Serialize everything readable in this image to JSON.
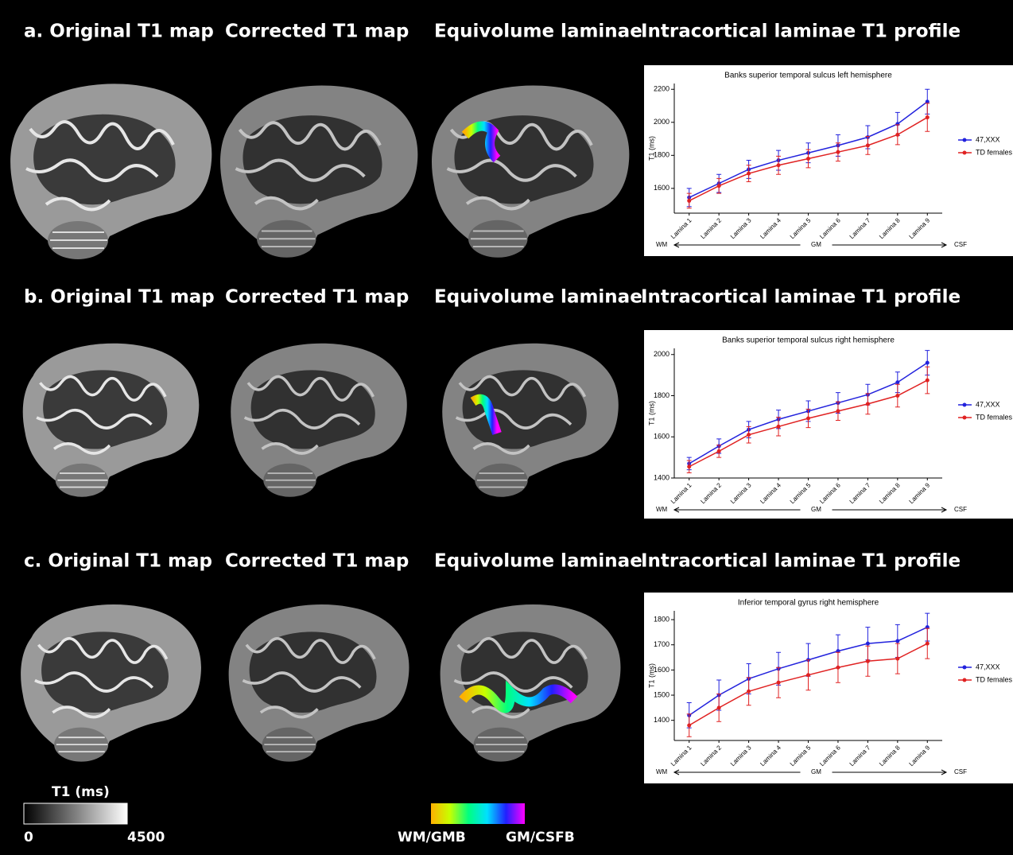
{
  "panels": [
    {
      "headers": [
        "a. Original T1 map",
        "Corrected T1 map",
        "Equivolume laminae",
        "Intracortical laminae T1 profile"
      ]
    },
    {
      "headers": [
        "b. Original T1 map",
        "Corrected T1 map",
        "Equivolume laminae",
        "Intracortical laminae T1 profile"
      ]
    },
    {
      "headers": [
        "c. Original T1 map",
        "Corrected T1 map",
        "Equivolume laminae",
        "Intracortical laminae T1 profile"
      ]
    }
  ],
  "colorbars": [
    {
      "title": "T1 (ms)",
      "min_label": "0",
      "max_label": "4500"
    },
    {
      "min_label": "WM/GMB",
      "max_label": "GM/CSFB"
    }
  ],
  "chart_data": [
    {
      "type": "line",
      "title": "Banks superior temporal sulcus left hemisphere",
      "y_label": "T1 (ms)",
      "categories": [
        "Lamina 1",
        "Lamina 2",
        "Lamina 3",
        "Lamina 4",
        "Lamina 5",
        "Lamina 6",
        "Lamina 7",
        "Lamina 8",
        "Lamina 9"
      ],
      "series": [
        {
          "name": "47,XXX",
          "color": "#2222dd",
          "values": [
            1545,
            1630,
            1715,
            1770,
            1815,
            1860,
            1910,
            1990,
            2125
          ],
          "errors": [
            55,
            55,
            55,
            60,
            60,
            65,
            70,
            70,
            75
          ]
        },
        {
          "name": "TD females",
          "color": "#e02222",
          "values": [
            1525,
            1615,
            1690,
            1740,
            1780,
            1820,
            1860,
            1925,
            2030
          ],
          "errors": [
            45,
            45,
            50,
            55,
            55,
            55,
            55,
            60,
            85
          ]
        }
      ],
      "ylim": [
        1450,
        2235
      ],
      "yticks": [
        1600,
        1800,
        2000,
        2200
      ],
      "x_annotations": [
        "WM",
        "GM",
        "CSF"
      ]
    },
    {
      "type": "line",
      "title": "Banks superior temporal sulcus right hemisphere",
      "y_label": "T1 (ms)",
      "categories": [
        "Lamina 1",
        "Lamina 2",
        "Lamina 3",
        "Lamina 4",
        "Lamina 5",
        "Lamina 6",
        "Lamina 7",
        "Lamina 8",
        "Lamina 9"
      ],
      "series": [
        {
          "name": "47,XXX",
          "color": "#2222dd",
          "values": [
            1470,
            1555,
            1635,
            1685,
            1725,
            1765,
            1805,
            1865,
            1960
          ],
          "errors": [
            30,
            35,
            40,
            45,
            50,
            50,
            50,
            50,
            60
          ]
        },
        {
          "name": "TD females",
          "color": "#e02222",
          "values": [
            1455,
            1530,
            1610,
            1650,
            1690,
            1725,
            1760,
            1800,
            1875
          ],
          "errors": [
            30,
            30,
            40,
            45,
            45,
            45,
            50,
            55,
            65
          ]
        }
      ],
      "ylim": [
        1400,
        2030
      ],
      "yticks": [
        1400,
        1600,
        1800,
        2000
      ],
      "x_annotations": [
        "WM",
        "GM",
        "CSF"
      ]
    },
    {
      "type": "line",
      "title": "Inferior temporal gyrus right hemisphere",
      "y_label": "T1 (ms)",
      "categories": [
        "Lamina 1",
        "Lamina 2",
        "Lamina 3",
        "Lamina 4",
        "Lamina 5",
        "Lamina 6",
        "Lamina 7",
        "Lamina 8",
        "Lamina 9"
      ],
      "series": [
        {
          "name": "47,XXX",
          "color": "#2222dd",
          "values": [
            1420,
            1500,
            1565,
            1605,
            1640,
            1675,
            1705,
            1715,
            1770
          ],
          "errors": [
            50,
            60,
            60,
            65,
            65,
            65,
            65,
            65,
            55
          ]
        },
        {
          "name": "TD females",
          "color": "#e02222",
          "values": [
            1380,
            1450,
            1515,
            1550,
            1580,
            1610,
            1635,
            1645,
            1705
          ],
          "errors": [
            45,
            55,
            55,
            60,
            60,
            60,
            60,
            60,
            60
          ]
        }
      ],
      "ylim": [
        1320,
        1835
      ],
      "yticks": [
        1400,
        1500,
        1600,
        1700,
        1800
      ],
      "x_annotations": [
        "WM",
        "GM",
        "CSF"
      ]
    }
  ]
}
